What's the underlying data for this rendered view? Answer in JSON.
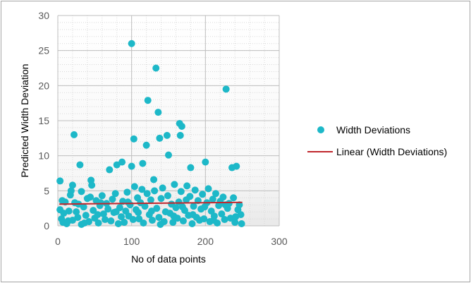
{
  "chart_data": {
    "type": "scatter",
    "xlabel": "No of data points",
    "ylabel": "Predicted Width Deviation",
    "xlim": [
      0,
      300
    ],
    "ylim": [
      0,
      30
    ],
    "xticks": [
      "0",
      "100",
      "200",
      "300"
    ],
    "yticks": [
      "0",
      "5",
      "10",
      "15",
      "20",
      "25",
      "30"
    ],
    "grid": "major gridlines both axes, dotted minor gridlines",
    "legend_position": "right",
    "series": [
      {
        "name": "Width Deviations",
        "color": "#1db8c8",
        "marker": "circle",
        "points": [
          [
            3,
            6.4
          ],
          [
            22,
            13.0
          ],
          [
            30,
            8.7
          ],
          [
            20,
            5.8
          ],
          [
            32,
            4.9
          ],
          [
            45,
            6.5
          ],
          [
            46,
            5.8
          ],
          [
            70,
            8.0
          ],
          [
            80,
            8.7
          ],
          [
            87,
            9.1
          ],
          [
            100,
            26.0
          ],
          [
            100,
            8.5
          ],
          [
            103,
            12.4
          ],
          [
            115,
            8.9
          ],
          [
            120,
            11.5
          ],
          [
            122,
            17.9
          ],
          [
            130,
            6.6
          ],
          [
            133,
            22.5
          ],
          [
            136,
            16.2
          ],
          [
            138,
            12.5
          ],
          [
            148,
            12.9
          ],
          [
            150,
            10.1
          ],
          [
            165,
            14.6
          ],
          [
            168,
            14.2
          ],
          [
            166,
            12.9
          ],
          [
            175,
            5.7
          ],
          [
            180,
            8.3
          ],
          [
            200,
            9.1
          ],
          [
            228,
            19.5
          ],
          [
            236,
            8.3
          ],
          [
            242,
            8.5
          ],
          [
            3,
            2.3
          ],
          [
            5,
            1.0
          ],
          [
            7,
            0.5
          ],
          [
            8,
            1.8
          ],
          [
            10,
            3.4
          ],
          [
            12,
            0.3
          ],
          [
            15,
            2.1
          ],
          [
            17,
            4.4
          ],
          [
            18,
            5.0
          ],
          [
            20,
            0.8
          ],
          [
            25,
            2.0
          ],
          [
            27,
            1.2
          ],
          [
            28,
            3.1
          ],
          [
            32,
            0.2
          ],
          [
            35,
            2.7
          ],
          [
            38,
            1.5
          ],
          [
            40,
            3.9
          ],
          [
            42,
            0.6
          ],
          [
            44,
            4.1
          ],
          [
            48,
            2.2
          ],
          [
            50,
            1.1
          ],
          [
            52,
            3.6
          ],
          [
            55,
            0.4
          ],
          [
            57,
            2.9
          ],
          [
            60,
            4.3
          ],
          [
            62,
            1.7
          ],
          [
            64,
            0.9
          ],
          [
            66,
            3.2
          ],
          [
            68,
            2.4
          ],
          [
            72,
            0.7
          ],
          [
            74,
            3.8
          ],
          [
            76,
            1.9
          ],
          [
            78,
            4.6
          ],
          [
            82,
            0.3
          ],
          [
            84,
            2.6
          ],
          [
            86,
            1.3
          ],
          [
            88,
            3.5
          ],
          [
            90,
            0.5
          ],
          [
            92,
            2.1
          ],
          [
            94,
            4.8
          ],
          [
            96,
            1.4
          ],
          [
            98,
            3.0
          ],
          [
            102,
            0.9
          ],
          [
            104,
            5.6
          ],
          [
            106,
            2.3
          ],
          [
            108,
            4.0
          ],
          [
            110,
            1.0
          ],
          [
            112,
            3.3
          ],
          [
            114,
            5.2
          ],
          [
            116,
            0.4
          ],
          [
            118,
            2.8
          ],
          [
            121,
            4.6
          ],
          [
            124,
            1.6
          ],
          [
            126,
            3.7
          ],
          [
            128,
            0.8
          ],
          [
            131,
            5.0
          ],
          [
            134,
            2.5
          ],
          [
            137,
            1.2
          ],
          [
            140,
            3.9
          ],
          [
            142,
            5.4
          ],
          [
            144,
            0.6
          ],
          [
            146,
            2.0
          ],
          [
            149,
            4.3
          ],
          [
            152,
            1.8
          ],
          [
            154,
            3.1
          ],
          [
            156,
            0.5
          ],
          [
            158,
            5.9
          ],
          [
            160,
            2.6
          ],
          [
            162,
            1.1
          ],
          [
            164,
            3.4
          ],
          [
            167,
            4.9
          ],
          [
            170,
            0.7
          ],
          [
            172,
            2.2
          ],
          [
            174,
            3.7
          ],
          [
            177,
            1.5
          ],
          [
            179,
            4.2
          ],
          [
            182,
            0.3
          ],
          [
            184,
            2.8
          ],
          [
            186,
            5.1
          ],
          [
            188,
            1.2
          ],
          [
            190,
            3.6
          ],
          [
            192,
            0.8
          ],
          [
            194,
            2.4
          ],
          [
            196,
            4.5
          ],
          [
            198,
            1.0
          ],
          [
            202,
            3.3
          ],
          [
            204,
            5.3
          ],
          [
            206,
            0.6
          ],
          [
            208,
            2.1
          ],
          [
            210,
            3.8
          ],
          [
            212,
            1.4
          ],
          [
            214,
            4.6
          ],
          [
            216,
            0.4
          ],
          [
            218,
            2.9
          ],
          [
            220,
            3.5
          ],
          [
            222,
            1.7
          ],
          [
            224,
            4.1
          ],
          [
            226,
            0.9
          ],
          [
            230,
            2.5
          ],
          [
            232,
            3.2
          ],
          [
            234,
            1.1
          ],
          [
            238,
            4.0
          ],
          [
            240,
            0.5
          ],
          [
            244,
            2.3
          ],
          [
            246,
            3.0
          ],
          [
            248,
            1.6
          ],
          [
            249,
            0.3
          ],
          [
            6,
            3.6
          ],
          [
            14,
            0.7
          ],
          [
            23,
            3.3
          ],
          [
            36,
            0.4
          ],
          [
            54,
            1.6
          ],
          [
            58,
            3.3
          ],
          [
            79,
            2.0
          ],
          [
            95,
            3.4
          ],
          [
            109,
            1.9
          ],
          [
            127,
            2.1
          ],
          [
            139,
            0.2
          ],
          [
            157,
            1.4
          ],
          [
            169,
            2.7
          ],
          [
            183,
            1.6
          ],
          [
            199,
            2.7
          ],
          [
            211,
            0.8
          ],
          [
            227,
            3.0
          ],
          [
            241,
            1.3
          ]
        ]
      },
      {
        "name": "Linear (Width Deviations)",
        "color": "#c0272d",
        "type": "line",
        "points": [
          [
            2,
            3.1
          ],
          [
            250,
            3.35
          ]
        ]
      }
    ]
  }
}
